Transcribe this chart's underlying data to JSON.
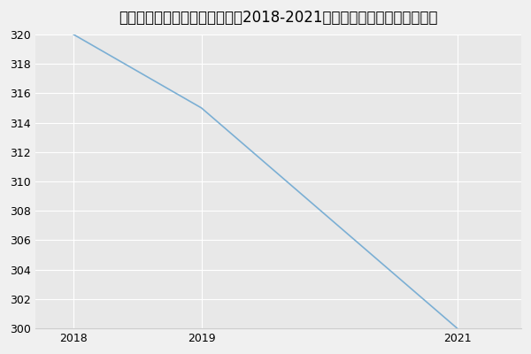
{
  "title": "西安交通大学临床检验诊断学（2018-2021历年复试）研究生录取分数线",
  "x_values": [
    2018,
    2019,
    2021
  ],
  "y_values": [
    320,
    315,
    300
  ],
  "line_color": "#7bafd4",
  "background_color": "#f0f0f0",
  "plot_bg_color": "#e8e8e8",
  "grid_color": "#ffffff",
  "ylim_min": 300,
  "ylim_max": 320,
  "ytick_step": 2,
  "xticks": [
    2018,
    2019,
    2021
  ],
  "xlim_min": 2017.7,
  "xlim_max": 2021.5,
  "title_fontsize": 12,
  "tick_fontsize": 9,
  "line_width": 1.2
}
